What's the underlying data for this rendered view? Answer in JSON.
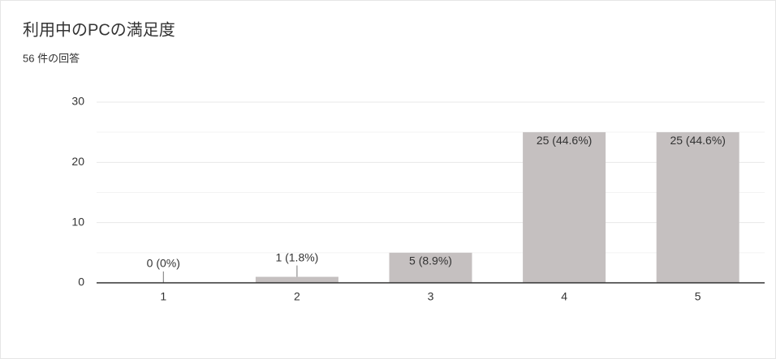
{
  "chart_data": {
    "type": "bar",
    "title": "利用中のPCの満足度",
    "subtitle": "56 件の回答",
    "categories": [
      "1",
      "2",
      "3",
      "4",
      "5"
    ],
    "values": [
      0,
      1,
      5,
      25,
      25
    ],
    "value_labels": [
      "0 (0%)",
      "1 (1.8%)",
      "5 (8.9%)",
      "25 (44.6%)",
      "25 (44.6%)"
    ],
    "color": "#c5c0c0",
    "ylim": [
      0,
      30
    ],
    "yticks": [
      0,
      10,
      20,
      30
    ],
    "minor_yticks": [
      5,
      15,
      25
    ],
    "grid": true
  }
}
